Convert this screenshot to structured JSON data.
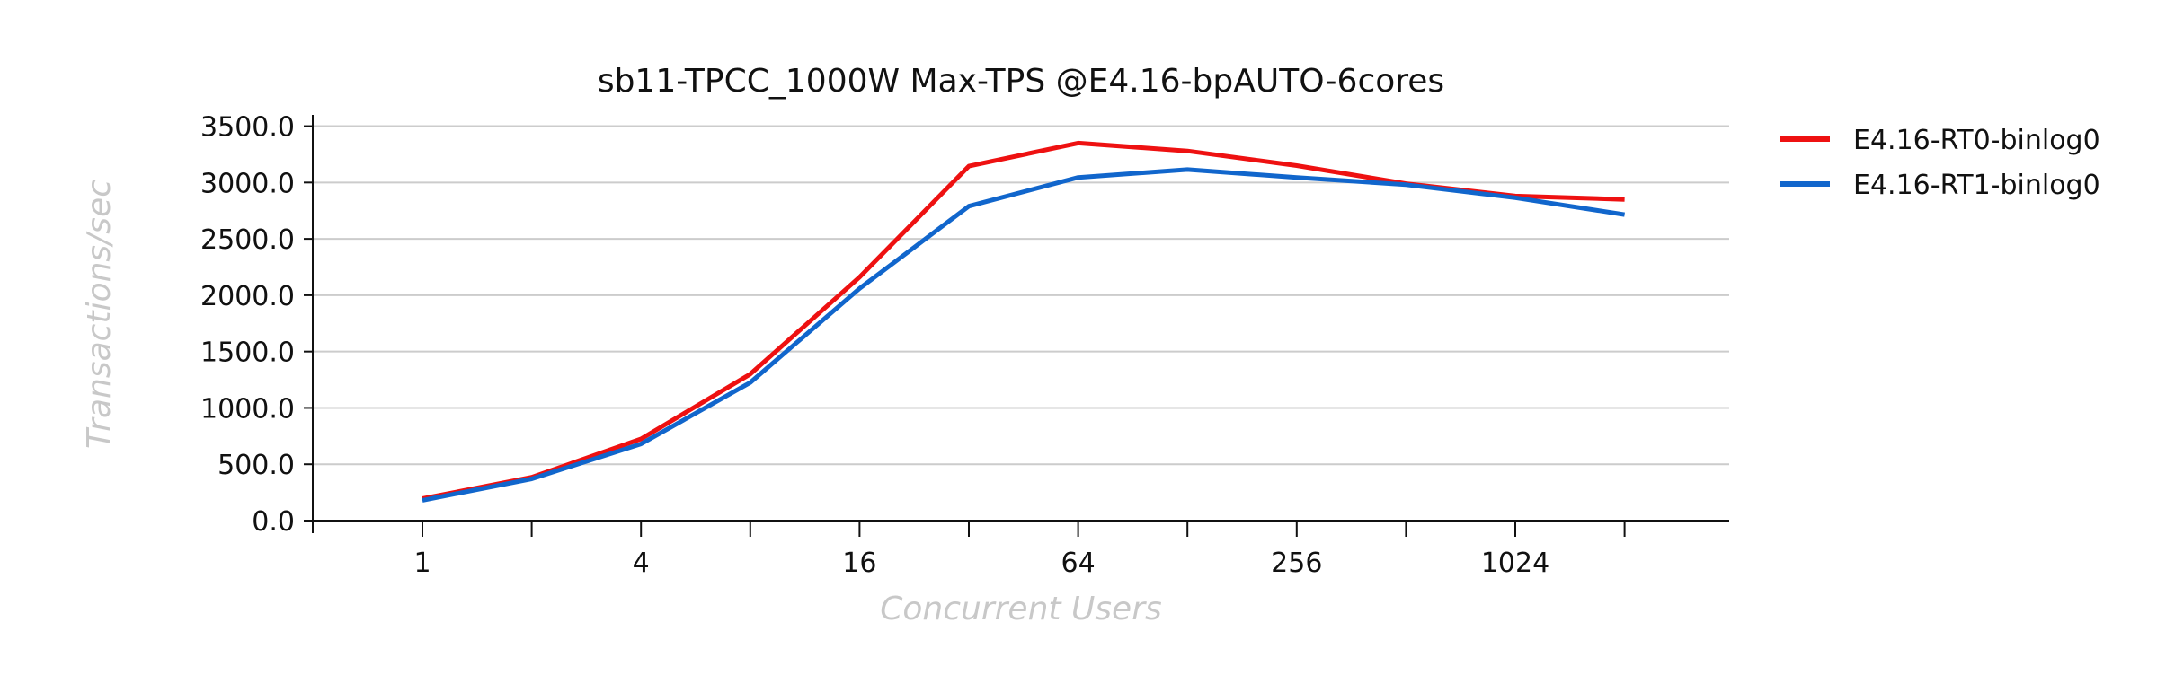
{
  "chart_data": {
    "type": "line",
    "title": "sb11-TPCC_1000W Max-TPS @E4.16-bpAUTO-6cores",
    "xlabel": "Concurrent Users",
    "ylabel": "Transactions/sec",
    "x_scale": "log2",
    "x": [
      1,
      2,
      4,
      8,
      16,
      32,
      64,
      128,
      256,
      512,
      1024,
      2048
    ],
    "x_tick_labels": [
      "1",
      "4",
      "16",
      "64",
      "256",
      "1024"
    ],
    "x_tick_label_values": [
      1,
      4,
      16,
      64,
      256,
      1024
    ],
    "y_tick_labels": [
      "0.0",
      "500.0",
      "1000.0",
      "1500.0",
      "2000.0",
      "2500.0",
      "3000.0",
      "3500.0"
    ],
    "ylim": [
      0,
      3600
    ],
    "grid": "horizontal",
    "legend_position": "top-right, outside plot",
    "series": [
      {
        "name": "E4.16-RT0-binlog0",
        "color": "#ee1111",
        "values": [
          195,
          385,
          725,
          1300,
          2160,
          3145,
          3350,
          3280,
          3150,
          2990,
          2880,
          2850
        ]
      },
      {
        "name": "E4.16-RT1-binlog0",
        "color": "#1166cc",
        "values": [
          180,
          370,
          680,
          1225,
          2060,
          2790,
          3045,
          3115,
          3045,
          2980,
          2865,
          2715
        ]
      }
    ]
  }
}
